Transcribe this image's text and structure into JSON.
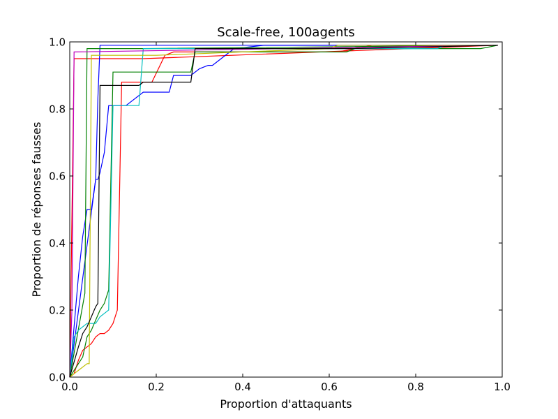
{
  "chart_data": {
    "type": "line",
    "title": "Scale-free, 100agents",
    "xlabel": "Proportion d'attaquants",
    "ylabel": "Proportion de réponses fausses",
    "xlim": [
      0.0,
      1.0
    ],
    "ylim": [
      0.0,
      1.0
    ],
    "xticks": [
      "0.0",
      "0.2",
      "0.4",
      "0.6",
      "0.8",
      "1.0"
    ],
    "yticks": [
      "0.0",
      "0.2",
      "0.4",
      "0.6",
      "0.8",
      "1.0"
    ],
    "grid": false,
    "legend": false,
    "series": [
      {
        "color": "#ff0000",
        "x": [
          0.0,
          0.01,
          0.02,
          0.03,
          0.04,
          0.05,
          0.06,
          0.07,
          0.08,
          0.09,
          0.1,
          0.11,
          0.12,
          0.17,
          0.19,
          0.22,
          0.24,
          0.28,
          0.62,
          0.7,
          0.99
        ],
        "y": [
          0.0,
          0.01,
          0.05,
          0.08,
          0.09,
          0.1,
          0.12,
          0.13,
          0.13,
          0.14,
          0.16,
          0.2,
          0.88,
          0.88,
          0.88,
          0.96,
          0.97,
          0.97,
          0.97,
          0.99,
          0.99
        ]
      },
      {
        "color": "#ff0000",
        "x": [
          0.0,
          0.01,
          0.17,
          0.99
        ],
        "y": [
          0.0,
          0.95,
          0.95,
          0.99
        ]
      },
      {
        "color": "#0000ff",
        "x": [
          0.0,
          0.02,
          0.03,
          0.04,
          0.05,
          0.06,
          0.065,
          0.07,
          0.08,
          0.09,
          0.1,
          0.13,
          0.17,
          0.18,
          0.23,
          0.24,
          0.28,
          0.3,
          0.32,
          0.33,
          0.37,
          0.38,
          0.45,
          0.99
        ],
        "y": [
          0.0,
          0.3,
          0.42,
          0.5,
          0.5,
          0.59,
          0.59,
          0.61,
          0.67,
          0.81,
          0.81,
          0.81,
          0.85,
          0.85,
          0.85,
          0.9,
          0.9,
          0.92,
          0.93,
          0.93,
          0.97,
          0.98,
          0.99,
          0.99
        ]
      },
      {
        "color": "#0000ff",
        "x": [
          0.0,
          0.06,
          0.065,
          0.07,
          0.99
        ],
        "y": [
          0.0,
          0.59,
          0.83,
          0.99,
          0.99
        ]
      },
      {
        "color": "#008000",
        "x": [
          0.0,
          0.03,
          0.04,
          0.05,
          0.06,
          0.07,
          0.08,
          0.09,
          0.1,
          0.11,
          0.28,
          0.29,
          0.4,
          0.63,
          0.64,
          0.66,
          0.95,
          0.99
        ],
        "y": [
          0.0,
          0.06,
          0.12,
          0.14,
          0.17,
          0.2,
          0.22,
          0.26,
          0.91,
          0.91,
          0.91,
          0.97,
          0.97,
          0.97,
          0.97,
          0.98,
          0.98,
          0.99
        ]
      },
      {
        "color": "#008000",
        "x": [
          0.0,
          0.035,
          0.04,
          0.17,
          0.99
        ],
        "y": [
          0.0,
          0.25,
          0.98,
          0.98,
          0.99
        ]
      },
      {
        "color": "#00bfbf",
        "x": [
          0.0,
          0.01,
          0.02,
          0.04,
          0.05,
          0.06,
          0.07,
          0.08,
          0.09,
          0.1,
          0.12,
          0.13,
          0.16,
          0.17,
          0.27,
          0.3,
          0.85,
          0.87,
          0.99
        ],
        "y": [
          0.0,
          0.12,
          0.14,
          0.16,
          0.16,
          0.16,
          0.18,
          0.19,
          0.2,
          0.81,
          0.81,
          0.81,
          0.81,
          0.98,
          0.98,
          0.98,
          0.98,
          0.99,
          0.99
        ]
      },
      {
        "color": "#bfbf00",
        "x": [
          0.0,
          0.01,
          0.02,
          0.04,
          0.045,
          0.05,
          0.06,
          0.17,
          0.2,
          0.6,
          0.62,
          0.99
        ],
        "y": [
          0.0,
          0.01,
          0.02,
          0.04,
          0.04,
          0.96,
          0.96,
          0.96,
          0.96,
          0.98,
          0.99,
          0.99
        ]
      },
      {
        "color": "#bf00bf",
        "x": [
          0.0,
          0.005,
          0.01,
          0.99
        ],
        "y": [
          0.0,
          0.2,
          0.97,
          0.99
        ]
      },
      {
        "color": "#000000",
        "x": [
          0.0,
          0.02,
          0.03,
          0.04,
          0.05,
          0.06,
          0.065,
          0.07,
          0.15,
          0.16,
          0.17,
          0.28,
          0.29,
          0.45,
          0.65,
          0.99
        ],
        "y": [
          0.0,
          0.09,
          0.13,
          0.15,
          0.18,
          0.21,
          0.22,
          0.87,
          0.87,
          0.87,
          0.88,
          0.88,
          0.98,
          0.98,
          0.98,
          0.99
        ]
      }
    ]
  }
}
